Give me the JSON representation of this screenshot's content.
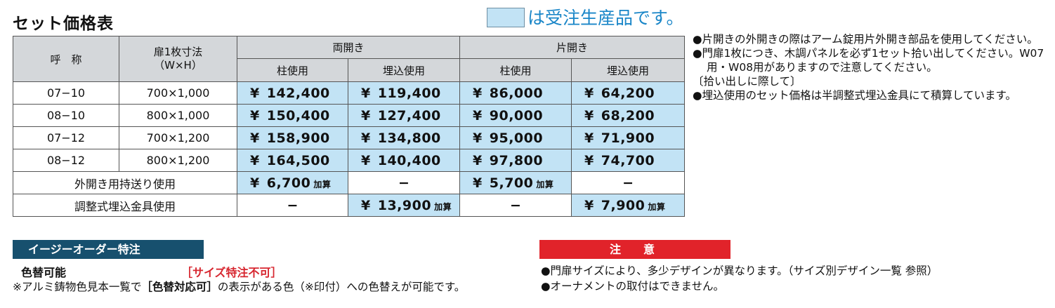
{
  "title": "セット価格表",
  "legend": {
    "text": "は受注生産品です。",
    "swatch_color": "#c2e3f5"
  },
  "table": {
    "headers": {
      "name": "呼　称",
      "size_line1": "扉1枚寸法",
      "size_line2": "（W×H）",
      "double": "両開き",
      "single": "片開き",
      "pillar": "柱使用",
      "embed": "埋込使用"
    },
    "rows": [
      {
        "name": "07−10",
        "size": "700×1,000",
        "d_pillar": "142,400",
        "d_embed": "119,400",
        "s_pillar": "86,000",
        "s_embed": "64,200"
      },
      {
        "name": "08−10",
        "size": "800×1,000",
        "d_pillar": "150,400",
        "d_embed": "127,400",
        "s_pillar": "90,000",
        "s_embed": "68,200"
      },
      {
        "name": "07−12",
        "size": "700×1,200",
        "d_pillar": "158,900",
        "d_embed": "134,800",
        "s_pillar": "95,000",
        "s_embed": "71,900"
      },
      {
        "name": "08−12",
        "size": "800×1,200",
        "d_pillar": "164,500",
        "d_embed": "140,400",
        "s_pillar": "97,800",
        "s_embed": "74,700"
      }
    ],
    "yen": "¥",
    "extra_rows": {
      "outward": {
        "label": "外開き用持送り使用",
        "d_pillar": "6,700",
        "s_pillar": "5,700",
        "dash": "−",
        "add": "加算"
      },
      "adjust": {
        "label": "調整式埋込金具使用",
        "d_embed": "13,900",
        "s_embed": "7,900",
        "dash": "−",
        "add": "加算"
      }
    }
  },
  "notes": {
    "n1": "●片開きの外開きの際はアーム錠用片外開き部品を使用してください。",
    "n2": "●門扉1枚につき、木調パネルを必ず1セット拾い出してください。W07用・W08用がありますので注意してください。",
    "n3": "〔拾い出しに際して〕",
    "n4": "●埋込使用のセット価格は半調整式埋込金具にて積算しています。"
  },
  "easy_order": {
    "header": "イージーオーダー特注",
    "color_label": "色替可能",
    "size_note": "［サイズ特注不可］",
    "desc_pre": "※アルミ鋳物色見本一覧で",
    "desc_bold": "［色替対応可］",
    "desc_post": "の表示がある色（※印付）への色替えが可能です。"
  },
  "caution": {
    "header": "注　意",
    "c1": "●門扉サイズにより、多少デザインが異なります。（サイズ別デザイン一覧 参照）",
    "c2": "●オーナメントの取付はできません。"
  }
}
